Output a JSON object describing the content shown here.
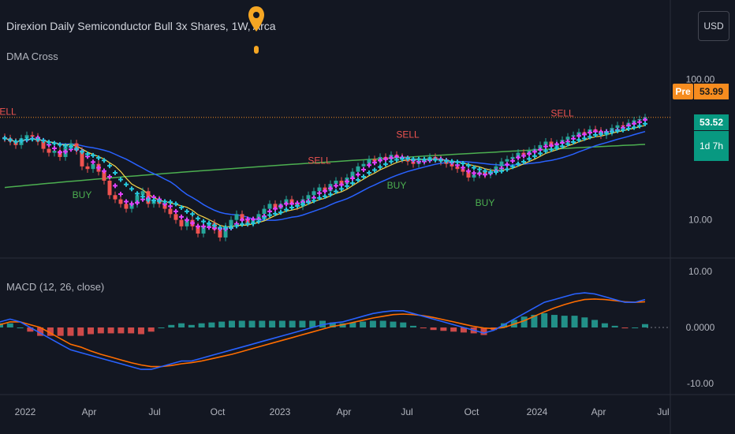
{
  "header": {
    "title": "Direxion Daily Semiconductor Bull 3x Shares, 1W, Arca",
    "indicator_label": "DMA Cross",
    "currency": "USD"
  },
  "price_tags": {
    "pre_label": "Pre",
    "pre_price": "53.99",
    "current_price": "53.52",
    "countdown": "1d 7h"
  },
  "macd": {
    "label": "MACD (12, 26, close)"
  },
  "colors": {
    "background": "#131722",
    "up": "#26a69a",
    "down": "#ef5350",
    "dma_fast": "#e040fb",
    "dma_mid": "#26c6da",
    "sma_blue": "#2962ff",
    "sma_green": "#4caf50",
    "sma_yellow": "#f7d54a",
    "macd_line": "#2962ff",
    "signal_line": "#ff6d00",
    "buy": "#4caf50",
    "sell": "#ef5350"
  },
  "chart_data": [
    {
      "type": "candlestick",
      "scale": "log",
      "y_ticks": [
        "100.00",
        "10.00"
      ],
      "x_ticks": [
        "2022",
        "Apr",
        "Jul",
        "Oct",
        "2023",
        "Apr",
        "Jul",
        "Oct",
        "2024",
        "Apr",
        "Jul"
      ],
      "close": [
        38,
        36,
        34,
        38,
        40,
        39,
        36,
        32,
        30,
        31,
        28,
        33,
        35,
        31,
        24,
        23,
        25,
        22,
        19,
        15,
        14,
        13,
        12,
        13,
        15,
        16,
        13,
        14,
        13,
        12,
        11,
        10,
        9,
        10,
        9,
        8,
        9,
        9.5,
        8.5,
        7.5,
        9,
        10,
        11,
        10,
        9.5,
        10,
        11,
        12,
        13,
        12,
        13,
        14,
        13,
        12.5,
        14,
        15,
        16,
        17,
        16,
        18,
        19,
        18,
        20,
        22,
        24,
        25,
        27,
        26,
        28,
        27,
        29,
        28,
        27,
        26,
        25,
        26,
        27,
        28,
        27,
        26,
        25,
        24,
        23,
        22,
        20,
        21,
        22,
        21,
        22,
        24,
        26,
        27,
        28,
        30,
        29,
        31,
        32,
        34,
        36,
        33,
        35,
        37,
        39,
        40,
        42,
        41,
        44,
        43,
        40,
        42,
        45,
        47,
        46,
        49,
        51,
        52,
        53.52
      ],
      "signals": [
        {
          "label": "SELL",
          "index": 0
        },
        {
          "label": "BUY",
          "index": 14
        },
        {
          "label": "SELL",
          "index": 57
        },
        {
          "label": "BUY",
          "index": 71
        },
        {
          "label": "SELL",
          "index": 73
        },
        {
          "label": "BUY",
          "index": 87
        },
        {
          "label": "SELL",
          "index": 101
        }
      ],
      "series": [
        "DMA Cross fast",
        "DMA Cross slow",
        "SMA blue",
        "SMA green"
      ]
    },
    {
      "type": "line",
      "name": "MACD (12, 26, close)",
      "y_ticks": [
        "10.00",
        "0.0000",
        "-10.00"
      ],
      "ylim": [
        -12,
        12
      ],
      "macd": [
        1,
        1.5,
        1,
        0,
        -1,
        -2,
        -3,
        -4,
        -4.5,
        -5,
        -5.5,
        -6,
        -6.5,
        -7,
        -7.5,
        -7.5,
        -7,
        -6.5,
        -6,
        -6,
        -5.5,
        -5,
        -4.5,
        -4,
        -3.5,
        -3,
        -2.5,
        -2,
        -1.5,
        -1,
        -0.5,
        0,
        0.5,
        0.8,
        1,
        1.5,
        2,
        2.5,
        2.8,
        3,
        3,
        2.5,
        2,
        1.5,
        1,
        0.5,
        0,
        -0.5,
        -1,
        -0.5,
        0.5,
        1.5,
        2.5,
        3.5,
        4.5,
        5,
        5.5,
        6,
        6.2,
        6,
        5.5,
        5,
        4.5,
        4.5,
        5
      ],
      "signal": [
        0.5,
        1,
        1,
        0.5,
        0,
        -1,
        -2,
        -3,
        -3.5,
        -4.2,
        -4.8,
        -5.3,
        -5.8,
        -6.3,
        -6.7,
        -7,
        -7,
        -6.8,
        -6.5,
        -6.3,
        -6,
        -5.6,
        -5.2,
        -4.8,
        -4.3,
        -3.8,
        -3.3,
        -2.8,
        -2.3,
        -1.8,
        -1.3,
        -0.8,
        -0.3,
        0.2,
        0.5,
        0.9,
        1.3,
        1.7,
        2,
        2.3,
        2.4,
        2.3,
        2.1,
        1.8,
        1.4,
        1,
        0.6,
        0.2,
        -0.1,
        -0.2,
        0,
        0.6,
        1.2,
        2,
        2.8,
        3.5,
        4.1,
        4.6,
        5,
        5.1,
        5,
        4.8,
        4.6,
        4.5,
        4.6
      ]
    }
  ]
}
